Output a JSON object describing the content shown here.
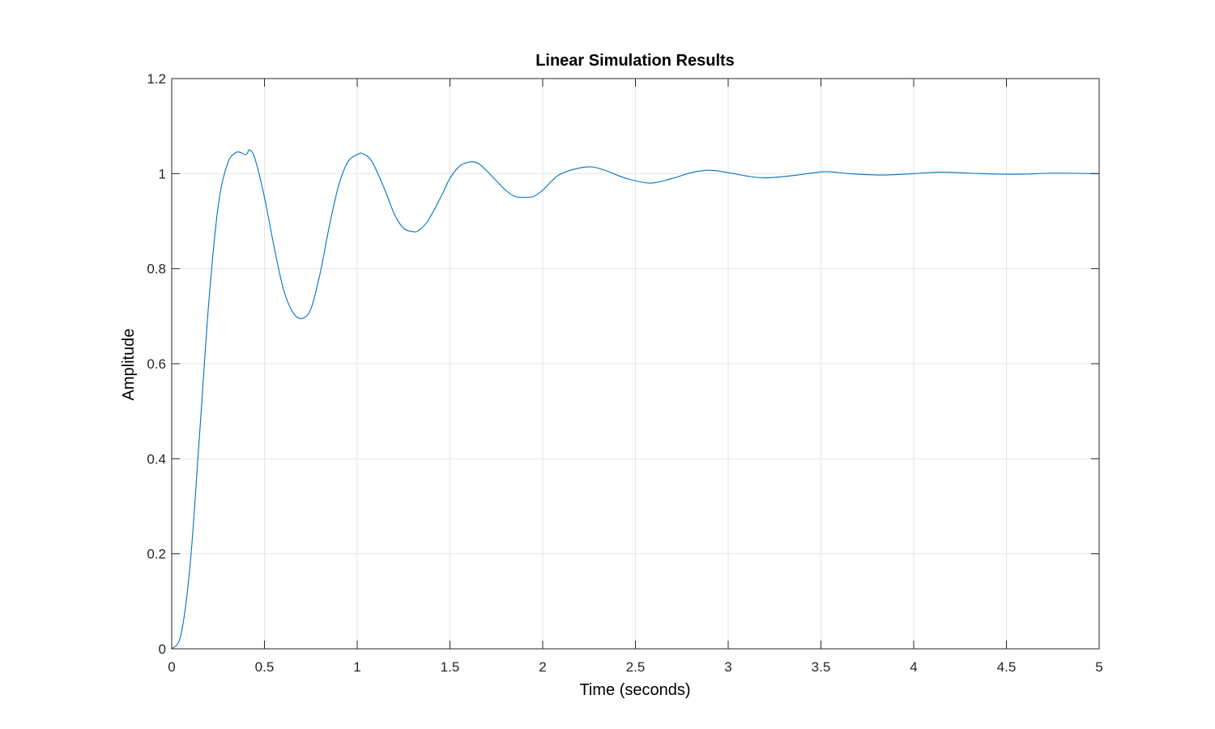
{
  "chart_data": {
    "type": "line",
    "title": "Linear Simulation Results",
    "xlabel": "Time (seconds)",
    "ylabel": "Amplitude",
    "xlim": [
      0,
      5
    ],
    "ylim": [
      0,
      1.2
    ],
    "xticks": [
      0,
      0.5,
      1,
      1.5,
      2,
      2.5,
      3,
      3.5,
      4,
      4.5,
      5
    ],
    "xtick_labels": [
      "0",
      "0.5",
      "1",
      "1.5",
      "2",
      "2.5",
      "3",
      "3.5",
      "4",
      "4.5",
      "5"
    ],
    "yticks": [
      0,
      0.2,
      0.4,
      0.6,
      0.8,
      1,
      1.2
    ],
    "ytick_labels": [
      "0",
      "0.2",
      "0.4",
      "0.6",
      "0.8",
      "1",
      "1.2"
    ],
    "grid": true,
    "line_color": "#0072BD",
    "series": [
      {
        "x": [
          0,
          0.05,
          0.1,
          0.15,
          0.2,
          0.25,
          0.3,
          0.35,
          0.4,
          0.42,
          0.45,
          0.5,
          0.55,
          0.6,
          0.65,
          0.7,
          0.75,
          0.8,
          0.85,
          0.9,
          0.95,
          1.0,
          1.03,
          1.08,
          1.15,
          1.2,
          1.25,
          1.3,
          1.33,
          1.38,
          1.45,
          1.5,
          1.55,
          1.6,
          1.65,
          1.7,
          1.75,
          1.8,
          1.85,
          1.9,
          1.95,
          2.0,
          2.05,
          2.1,
          2.2,
          2.27,
          2.35,
          2.45,
          2.58,
          2.7,
          2.8,
          2.9,
          3.0,
          3.1,
          3.2,
          3.35,
          3.52,
          3.65,
          3.82,
          4.0,
          4.14,
          4.3,
          4.45,
          4.6,
          4.75,
          5.0
        ],
        "y": [
          0,
          0.03,
          0.18,
          0.45,
          0.73,
          0.93,
          1.02,
          1.045,
          1.04,
          1.05,
          1.03,
          0.95,
          0.85,
          0.76,
          0.71,
          0.695,
          0.715,
          0.79,
          0.89,
          0.975,
          1.025,
          1.04,
          1.042,
          1.025,
          0.965,
          0.915,
          0.885,
          0.878,
          0.88,
          0.9,
          0.95,
          0.99,
          1.015,
          1.024,
          1.022,
          1.005,
          0.985,
          0.965,
          0.952,
          0.95,
          0.952,
          0.965,
          0.985,
          1.0,
          1.012,
          1.014,
          1.005,
          0.99,
          0.98,
          0.99,
          1.002,
          1.007,
          1.002,
          0.995,
          0.991,
          0.996,
          1.004,
          1.0,
          0.997,
          1.0,
          1.003,
          1.001,
          0.999,
          0.999,
          1.001,
          1.0
        ]
      }
    ]
  }
}
